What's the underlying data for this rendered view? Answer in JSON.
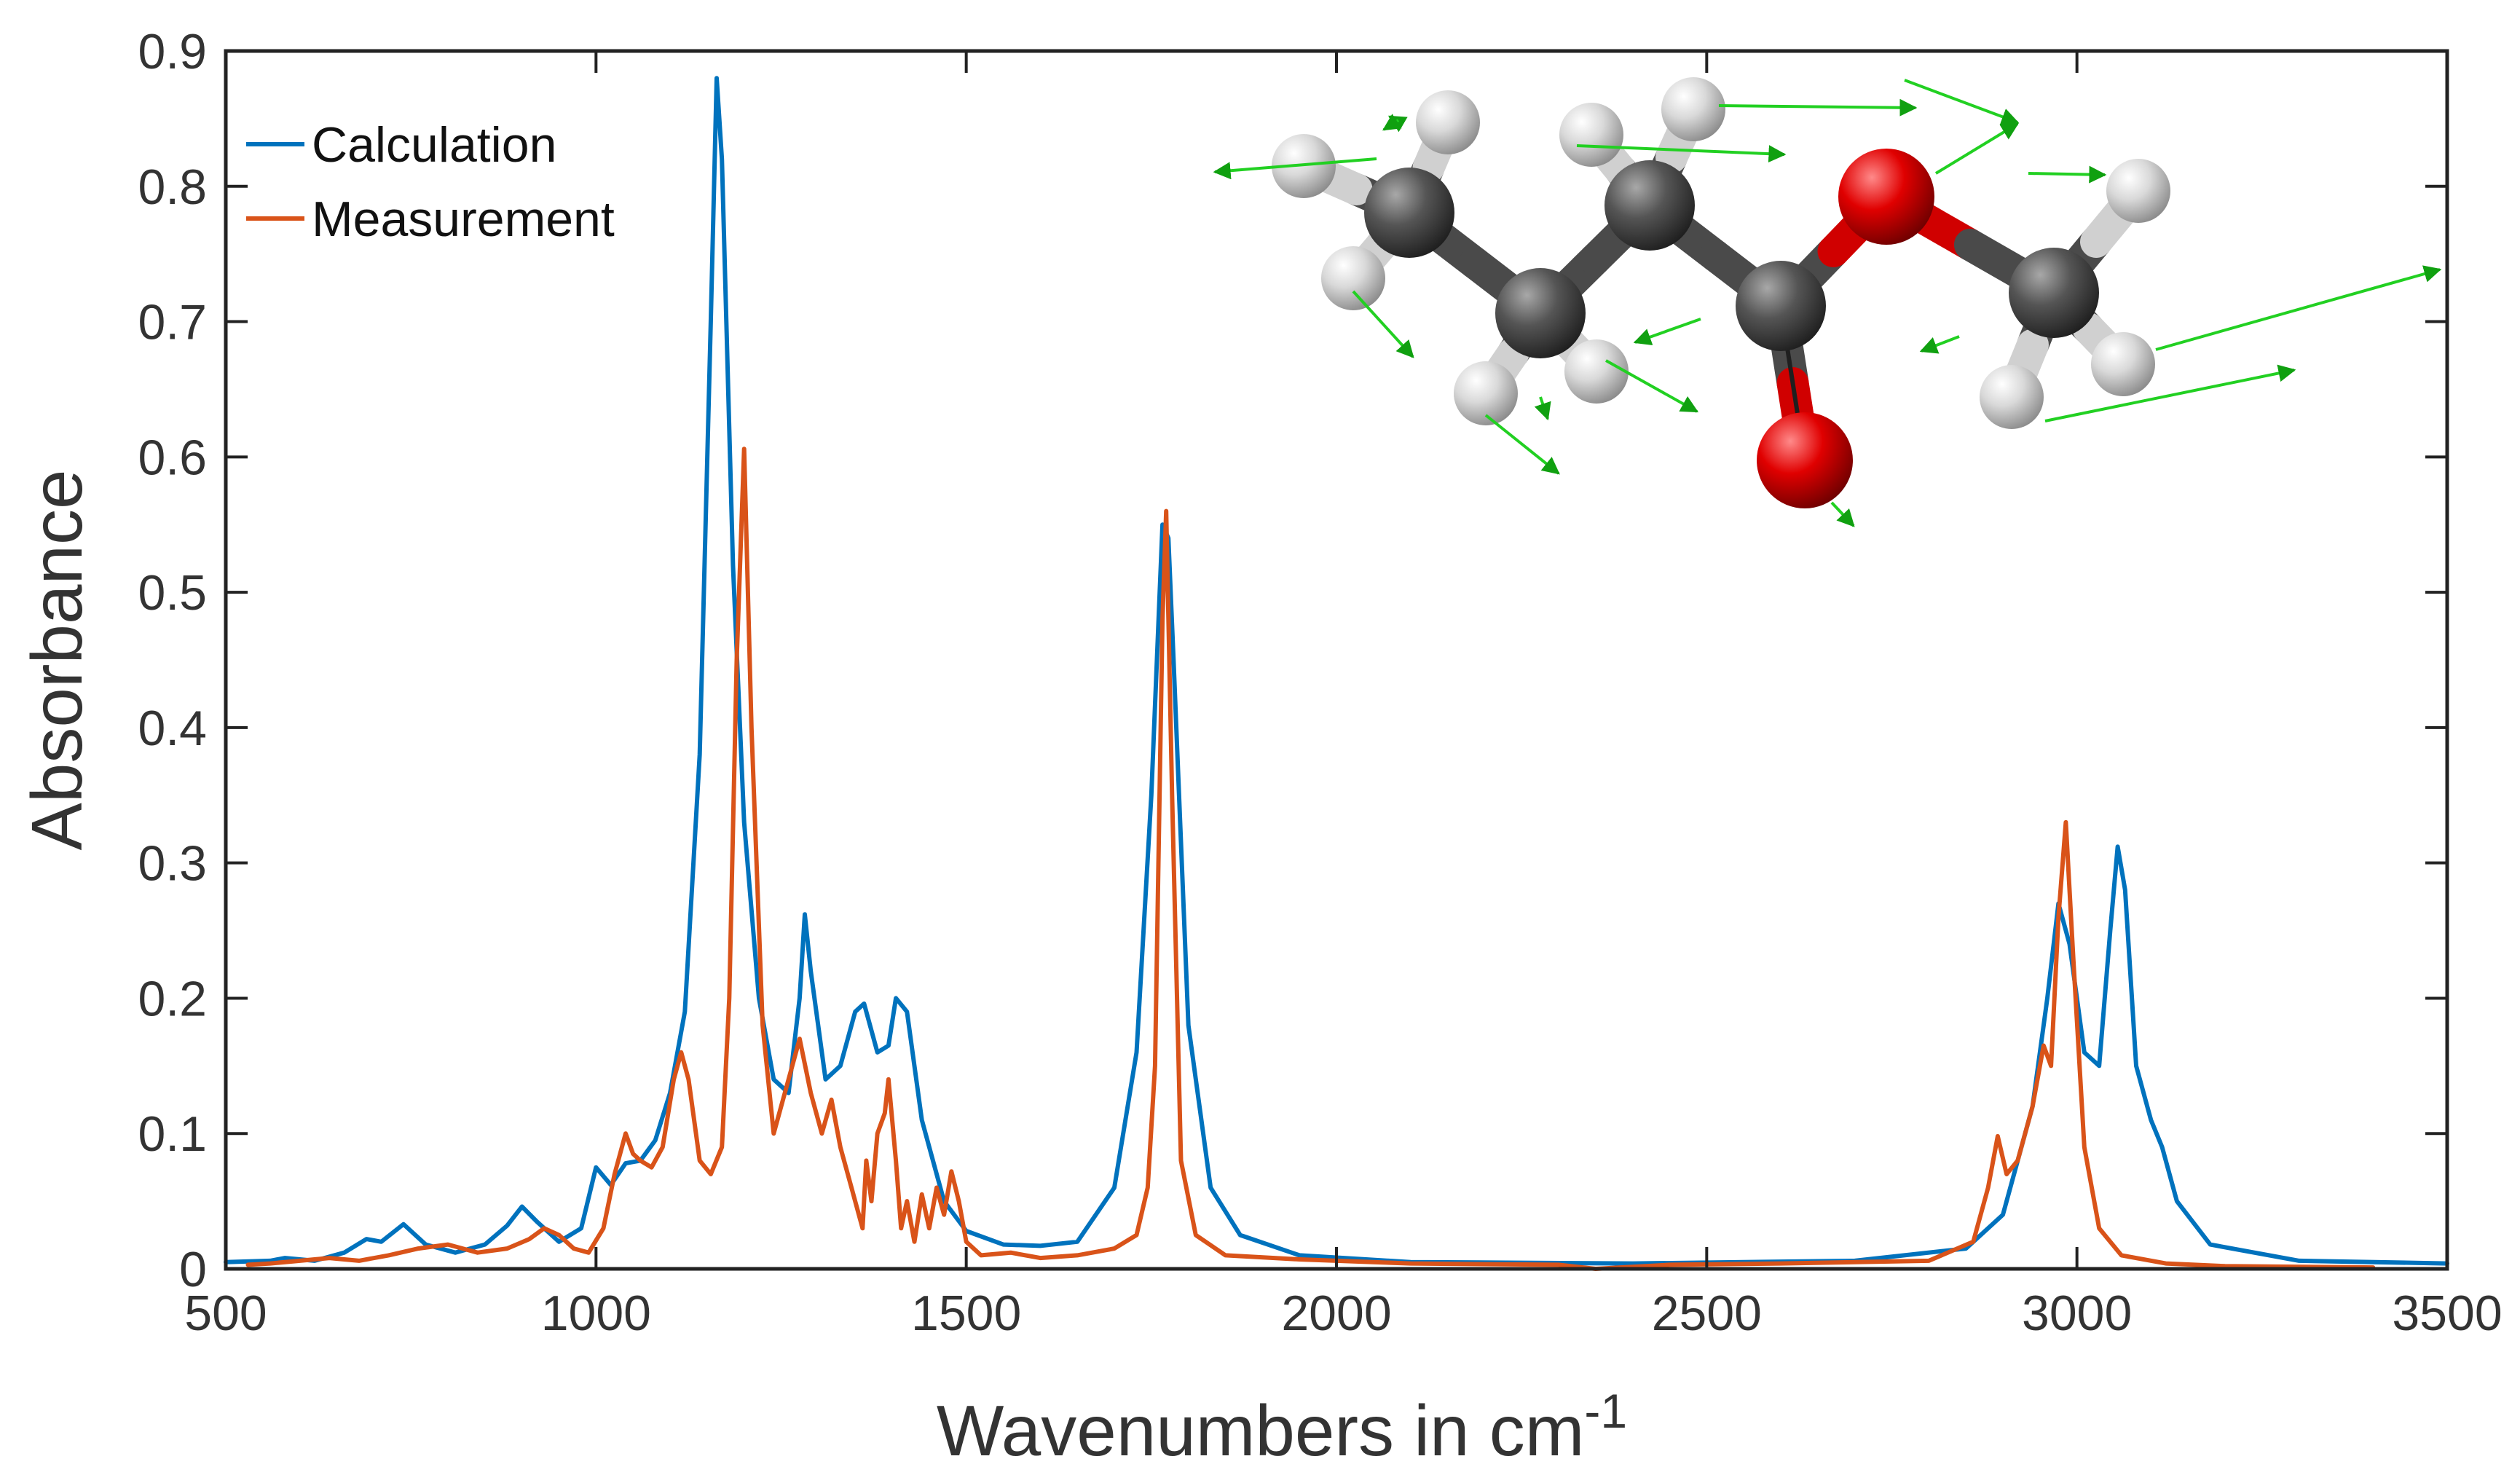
{
  "chart_data": {
    "type": "line",
    "title": "",
    "xlabel": "Wavenumbers in cm",
    "xlabel_superscript": "-1",
    "ylabel": "Absorbance",
    "xlim": [
      500,
      3500
    ],
    "ylim": [
      0,
      0.9
    ],
    "x_ticks": [
      500,
      1000,
      1500,
      2000,
      2500,
      3000,
      3500
    ],
    "x_tick_labels": [
      "500",
      "1000",
      "1500",
      "2000",
      "2500",
      "3000",
      "3500"
    ],
    "y_ticks": [
      0,
      0.1,
      0.2,
      0.3,
      0.4,
      0.5,
      0.6,
      0.7,
      0.8,
      0.9
    ],
    "y_tick_labels": [
      "0",
      "0.1",
      "0.2",
      "0.3",
      "0.4",
      "0.5",
      "0.6",
      "0.7",
      "0.8",
      "0.9"
    ],
    "grid": false,
    "legend_position": "top-left",
    "inset": "ball-and-stick molecule model with green vibration vectors (top-right)",
    "series": [
      {
        "name": "Calculation",
        "color": "#0072BD",
        "x": [
          500,
          560,
          580,
          620,
          660,
          690,
          710,
          740,
          770,
          810,
          850,
          880,
          900,
          920,
          950,
          980,
          1000,
          1020,
          1040,
          1060,
          1080,
          1100,
          1120,
          1140,
          1155,
          1163,
          1170,
          1185,
          1200,
          1220,
          1240,
          1260,
          1275,
          1282,
          1290,
          1310,
          1330,
          1350,
          1362,
          1380,
          1395,
          1405,
          1420,
          1440,
          1470,
          1500,
          1550,
          1600,
          1650,
          1700,
          1730,
          1750,
          1765,
          1773,
          1780,
          1800,
          1830,
          1870,
          1950,
          2100,
          2400,
          2700,
          2850,
          2900,
          2940,
          2960,
          2975,
          2990,
          3010,
          3030,
          3045,
          3055,
          3065,
          3080,
          3100,
          3115,
          3135,
          3180,
          3300,
          3500
        ],
        "y": [
          0.005,
          0.006,
          0.008,
          0.006,
          0.012,
          0.022,
          0.02,
          0.033,
          0.018,
          0.012,
          0.018,
          0.032,
          0.046,
          0.035,
          0.02,
          0.03,
          0.075,
          0.062,
          0.078,
          0.08,
          0.095,
          0.13,
          0.19,
          0.38,
          0.7,
          0.88,
          0.82,
          0.52,
          0.33,
          0.2,
          0.14,
          0.13,
          0.2,
          0.262,
          0.22,
          0.14,
          0.15,
          0.19,
          0.196,
          0.16,
          0.165,
          0.2,
          0.19,
          0.11,
          0.05,
          0.028,
          0.018,
          0.017,
          0.02,
          0.06,
          0.16,
          0.35,
          0.55,
          0.54,
          0.45,
          0.18,
          0.06,
          0.025,
          0.01,
          0.005,
          0.004,
          0.006,
          0.015,
          0.04,
          0.12,
          0.2,
          0.27,
          0.24,
          0.16,
          0.15,
          0.25,
          0.312,
          0.28,
          0.15,
          0.11,
          0.09,
          0.05,
          0.018,
          0.006,
          0.004
        ]
      },
      {
        "name": "Measurement",
        "color": "#D95319",
        "x": [
          530,
          560,
          600,
          640,
          680,
          720,
          760,
          800,
          840,
          880,
          910,
          930,
          950,
          970,
          990,
          1010,
          1025,
          1040,
          1050,
          1060,
          1075,
          1090,
          1105,
          1115,
          1125,
          1140,
          1155,
          1170,
          1180,
          1190,
          1200,
          1210,
          1225,
          1240,
          1255,
          1265,
          1275,
          1290,
          1305,
          1318,
          1330,
          1345,
          1360,
          1365,
          1372,
          1380,
          1390,
          1395,
          1405,
          1412,
          1420,
          1430,
          1440,
          1450,
          1460,
          1470,
          1480,
          1490,
          1500,
          1520,
          1560,
          1600,
          1650,
          1700,
          1730,
          1745,
          1755,
          1765,
          1770,
          1778,
          1790,
          1810,
          1850,
          1950,
          2100,
          2300,
          2350,
          2450,
          2600,
          2800,
          2860,
          2880,
          2893,
          2905,
          2920,
          2940,
          2955,
          2965,
          2975,
          2985,
          2995,
          3010,
          3030,
          3060,
          3120,
          3200,
          3400
        ],
        "y": [
          0.003,
          0.004,
          0.006,
          0.008,
          0.006,
          0.01,
          0.015,
          0.018,
          0.012,
          0.015,
          0.022,
          0.03,
          0.025,
          0.015,
          0.012,
          0.03,
          0.07,
          0.1,
          0.085,
          0.08,
          0.075,
          0.09,
          0.14,
          0.16,
          0.14,
          0.08,
          0.07,
          0.09,
          0.2,
          0.45,
          0.606,
          0.4,
          0.18,
          0.1,
          0.13,
          0.15,
          0.17,
          0.13,
          0.1,
          0.125,
          0.09,
          0.06,
          0.03,
          0.08,
          0.05,
          0.1,
          0.115,
          0.14,
          0.08,
          0.03,
          0.05,
          0.02,
          0.055,
          0.03,
          0.06,
          0.04,
          0.072,
          0.05,
          0.02,
          0.01,
          0.012,
          0.008,
          0.01,
          0.015,
          0.025,
          0.06,
          0.15,
          0.48,
          0.56,
          0.35,
          0.08,
          0.025,
          0.01,
          0.007,
          0.004,
          0.003,
          0.0,
          0.003,
          0.004,
          0.006,
          0.02,
          0.06,
          0.098,
          0.07,
          0.08,
          0.12,
          0.165,
          0.15,
          0.26,
          0.33,
          0.23,
          0.09,
          0.03,
          0.01,
          0.004,
          0.002,
          0.001
        ]
      }
    ]
  }
}
